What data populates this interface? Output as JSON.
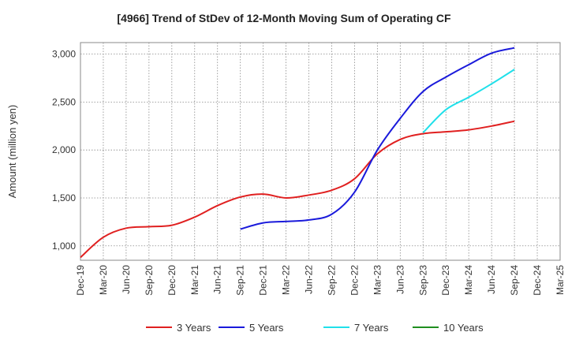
{
  "chart_data": {
    "type": "line",
    "title": "[4966]  Trend of StDev of 12-Month Moving Sum of Operating CF",
    "xlabel": "",
    "ylabel": "Amount (million yen)",
    "ylim": [
      850,
      3120
    ],
    "yticks": [
      1000,
      1500,
      2000,
      2500,
      3000
    ],
    "ytick_labels": [
      "1,000",
      "1,500",
      "2,000",
      "2,500",
      "3,000"
    ],
    "categories": [
      "Dec-19",
      "Mar-20",
      "Jun-20",
      "Sep-20",
      "Dec-20",
      "Mar-21",
      "Jun-21",
      "Sep-21",
      "Dec-21",
      "Mar-22",
      "Jun-22",
      "Sep-22",
      "Dec-22",
      "Mar-23",
      "Jun-23",
      "Sep-23",
      "Dec-23",
      "Mar-24",
      "Jun-24",
      "Sep-24",
      "Dec-24",
      "Mar-25"
    ],
    "grid": true,
    "legend_position": "bottom",
    "series": [
      {
        "name": "3 Years",
        "color": "#e02020",
        "values": [
          880,
          1090,
          1185,
          1200,
          1215,
          1300,
          1420,
          1510,
          1540,
          1500,
          1530,
          1580,
          1700,
          1960,
          2110,
          2170,
          2190,
          2210,
          2250,
          2300,
          null,
          null
        ]
      },
      {
        "name": "5 Years",
        "color": "#1a1adb",
        "values": [
          null,
          null,
          null,
          null,
          null,
          null,
          null,
          1175,
          1240,
          1255,
          1270,
          1330,
          1560,
          2000,
          2330,
          2610,
          2760,
          2890,
          3010,
          3065,
          null,
          null
        ]
      },
      {
        "name": "7 Years",
        "color": "#20e0ea",
        "values": [
          null,
          null,
          null,
          null,
          null,
          null,
          null,
          null,
          null,
          null,
          null,
          null,
          null,
          null,
          null,
          2180,
          2420,
          2550,
          2690,
          2840,
          null,
          null
        ]
      },
      {
        "name": "10 Years",
        "color": "#1f8f1f",
        "values": [
          null,
          null,
          null,
          null,
          null,
          null,
          null,
          null,
          null,
          null,
          null,
          null,
          null,
          null,
          null,
          null,
          null,
          null,
          null,
          null,
          null,
          null
        ]
      }
    ]
  }
}
